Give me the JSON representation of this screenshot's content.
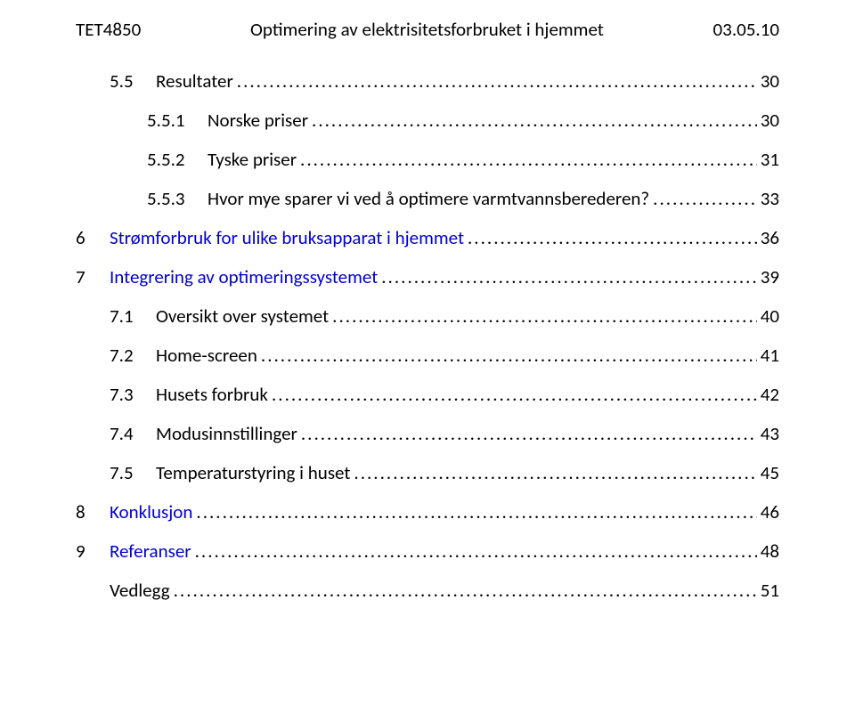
{
  "header": {
    "left": "TET4850",
    "center": "Optimering av elektrisitetsforbruket i hjemmet",
    "right": "03.05.10"
  },
  "toc": [
    {
      "level": 2,
      "num": "5.5",
      "title": "Resultater",
      "page": "30",
      "link": false
    },
    {
      "level": 3,
      "num": "5.5.1",
      "title": "Norske priser",
      "page": "30",
      "link": false
    },
    {
      "level": 3,
      "num": "5.5.2",
      "title": "Tyske priser",
      "page": "31",
      "link": false
    },
    {
      "level": 3,
      "num": "5.5.3",
      "title": "Hvor mye sparer vi ved å optimere varmtvannsberederen?",
      "page": "33",
      "link": false
    },
    {
      "level": 1,
      "num": "6",
      "title": "Strømforbruk for ulike bruksapparat i hjemmet",
      "page": "36",
      "link": true
    },
    {
      "level": 1,
      "num": "7",
      "title": "Integrering av optimeringssystemet",
      "page": "39",
      "link": true
    },
    {
      "level": 2,
      "num": "7.1",
      "title": "Oversikt over systemet",
      "page": "40",
      "link": false
    },
    {
      "level": 2,
      "num": "7.2",
      "title": "Home-screen",
      "page": "41",
      "link": false
    },
    {
      "level": 2,
      "num": "7.3",
      "title": "Husets forbruk",
      "page": "42",
      "link": false
    },
    {
      "level": 2,
      "num": "7.4",
      "title": "Modusinnstillinger",
      "page": "43",
      "link": false
    },
    {
      "level": 2,
      "num": "7.5",
      "title": "Temperaturstyring i huset",
      "page": "45",
      "link": false
    },
    {
      "level": 1,
      "num": "8",
      "title": "Konklusjon",
      "page": "46",
      "link": true
    },
    {
      "level": 1,
      "num": "9",
      "title": "Referanser",
      "page": "48",
      "link": true
    },
    {
      "level": 1,
      "num": "",
      "title": "Vedlegg",
      "page": "51",
      "link": false
    }
  ],
  "style": {
    "text_color": "#000000",
    "link_color": "#0000d0",
    "background": "#ffffff",
    "font_size_pt": 16
  }
}
